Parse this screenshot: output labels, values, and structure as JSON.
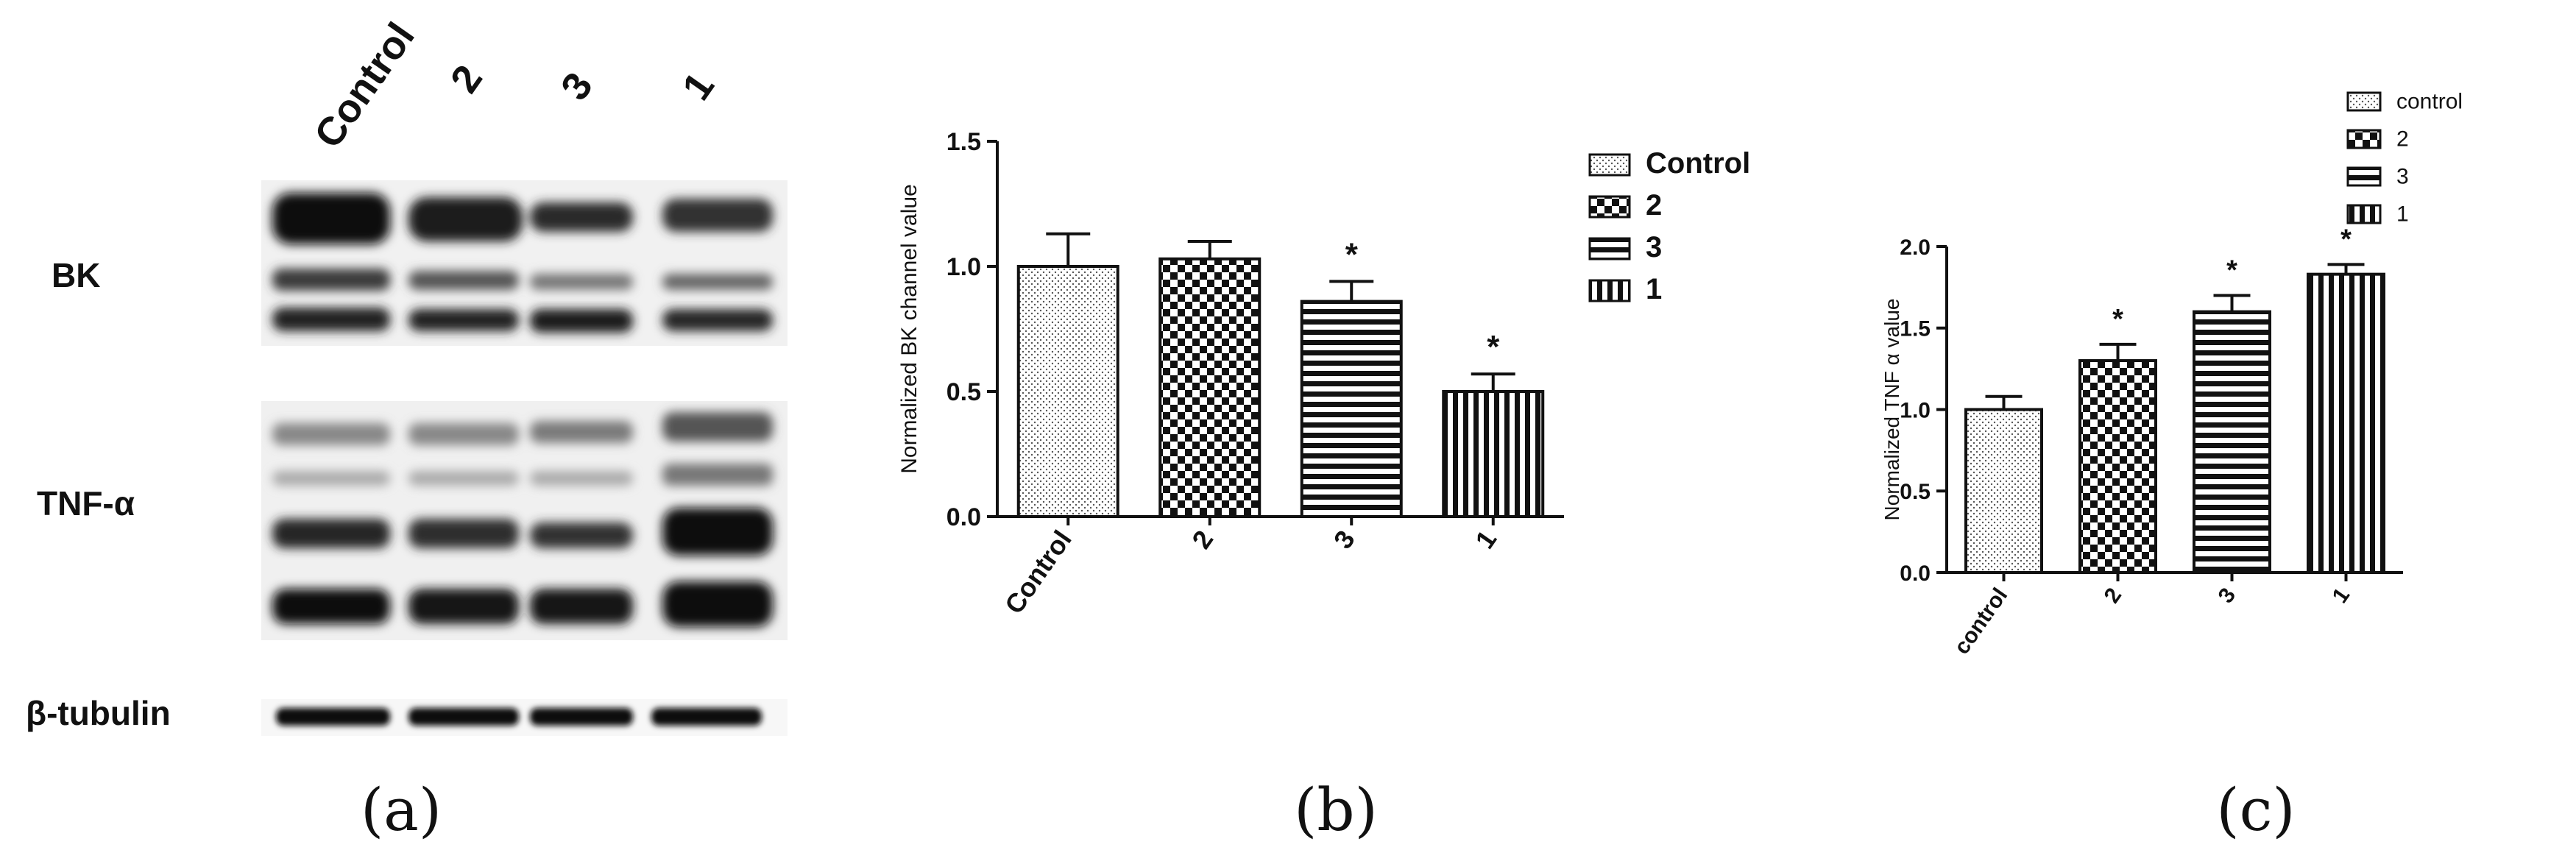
{
  "panel_a": {
    "lane_labels": [
      "Control",
      "2",
      "3",
      "1"
    ],
    "row_labels": [
      "BK",
      "TNF-α",
      "β-tubulin"
    ],
    "caption": "(a)"
  },
  "panel_b_caption": "(b)",
  "panel_c_caption": "(c)",
  "chart_data": [
    {
      "type": "bar",
      "categories": [
        "Control",
        "2",
        "3",
        "1"
      ],
      "values": [
        1.0,
        1.03,
        0.86,
        0.5
      ],
      "errors": [
        0.13,
        0.07,
        0.08,
        0.07
      ],
      "significance": [
        "",
        "",
        "*",
        "*"
      ],
      "legend": [
        "Control",
        "2",
        "3",
        "1"
      ],
      "ylabel": "Normalized BK channel value",
      "yticks": [
        "0.0",
        "0.5",
        "1.0",
        "1.5"
      ],
      "ylim": [
        0,
        1.5
      ],
      "legend_position": "right"
    },
    {
      "type": "bar",
      "categories": [
        "control",
        "2",
        "3",
        "1"
      ],
      "values": [
        1.0,
        1.3,
        1.6,
        1.83
      ],
      "errors": [
        0.08,
        0.1,
        0.1,
        0.06
      ],
      "significance": [
        "",
        "*",
        "*",
        "*"
      ],
      "legend": [
        "control",
        "2",
        "3",
        "1"
      ],
      "ylabel": "Normalized TNF α value",
      "yticks": [
        "0.0",
        "0.5",
        "1.0",
        "1.5",
        "2.0"
      ],
      "ylim": [
        0,
        2.0
      ],
      "legend_position": "top-right"
    }
  ]
}
